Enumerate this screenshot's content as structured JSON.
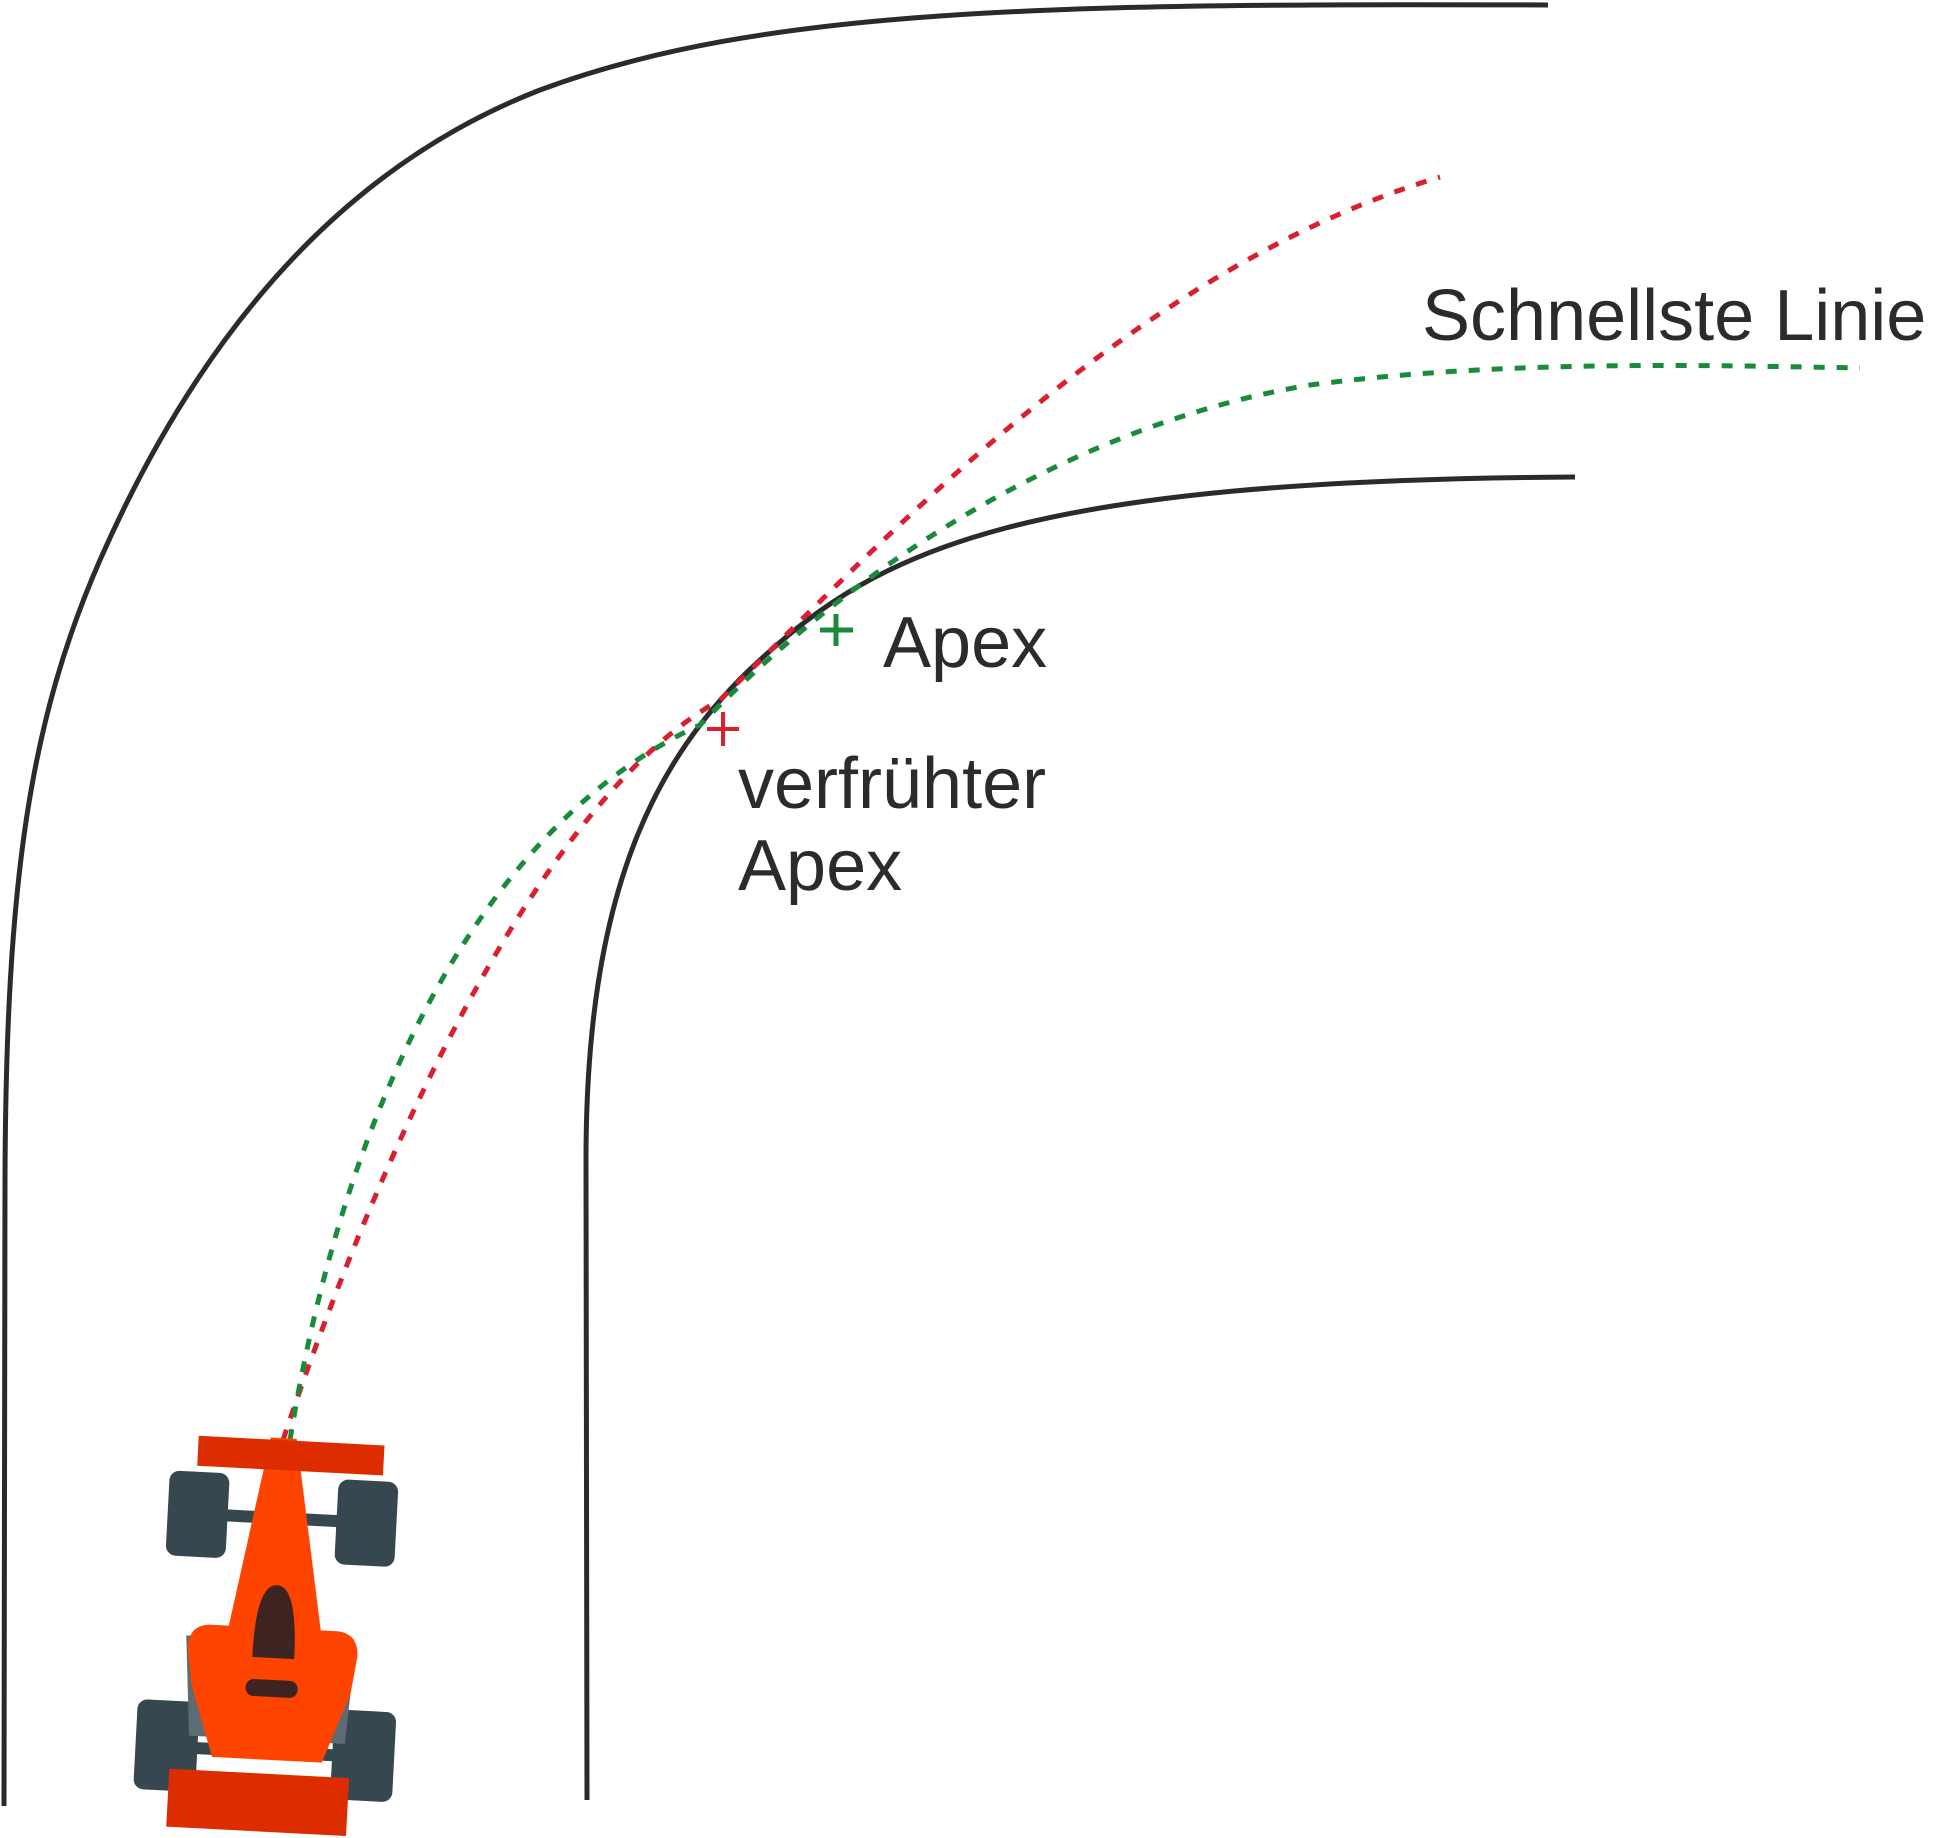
{
  "labels": {
    "fastest_line": "Schnellste Linie",
    "apex": "Apex",
    "early_apex_line1": "verfrühter",
    "early_apex_line2": "Apex"
  },
  "colors": {
    "track_edge": "#2b2b2b",
    "fastest_line": "#1a8a3c",
    "early_apex_line": "#d8202e",
    "car_body": "#ff4400",
    "car_wing": "#dd2d00",
    "tires": "#37474f",
    "cockpit": "#3e2420",
    "background": "#ffffff"
  }
}
